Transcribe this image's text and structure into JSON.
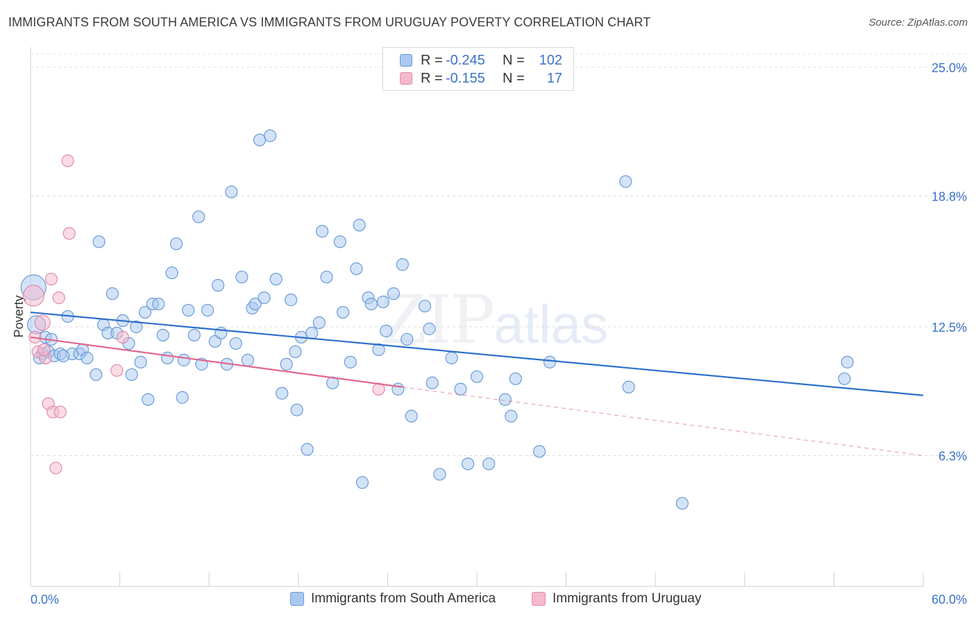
{
  "title": "IMMIGRANTS FROM SOUTH AMERICA VS IMMIGRANTS FROM URUGUAY POVERTY CORRELATION CHART",
  "source": "Source: ZipAtlas.com",
  "watermark": {
    "zip": "ZIP",
    "atlas": "atlas"
  },
  "legend_top": [
    {
      "r_label": "R =",
      "r_value": "-0.245",
      "n_label": "N =",
      "n_value": "102",
      "color": "#a8c8f0"
    },
    {
      "r_label": "R =",
      "r_value": "-0.155",
      "n_label": "N =",
      "n_value": "17",
      "color": "#f5b8cc"
    }
  ],
  "chart_data": {
    "type": "scatter",
    "ylabel": "Poverty",
    "xlim": [
      0,
      60
    ],
    "ylim": [
      0,
      25.0
    ],
    "x_tick_labels": [
      "0.0%",
      "60.0%"
    ],
    "y_ticks": [
      6.3,
      12.5,
      18.8,
      25.0
    ],
    "y_tick_labels": [
      "6.3%",
      "12.5%",
      "18.8%",
      "25.0%"
    ],
    "grid": true,
    "legend": "bottom",
    "series": [
      {
        "name": "Immigrants from South America",
        "color": "#a8c8f0",
        "stroke": "#6a9ad8",
        "trend_color": "#2c6fcb",
        "trend": {
          "x": [
            0,
            60
          ],
          "y": [
            13.2,
            9.2
          ]
        },
        "points": [
          [
            0.2,
            14.4
          ],
          [
            0.4,
            12.6
          ],
          [
            0.8,
            11.2
          ],
          [
            1.0,
            12.0
          ],
          [
            1.2,
            11.3
          ],
          [
            1.6,
            11.1
          ],
          [
            2.0,
            11.2
          ],
          [
            2.5,
            13.0
          ],
          [
            2.8,
            11.2
          ],
          [
            3.3,
            11.2
          ],
          [
            3.5,
            11.4
          ],
          [
            3.8,
            11.0
          ],
          [
            4.4,
            10.2
          ],
          [
            4.6,
            16.6
          ],
          [
            4.9,
            12.6
          ],
          [
            5.2,
            12.2
          ],
          [
            5.5,
            14.1
          ],
          [
            5.8,
            12.2
          ],
          [
            6.2,
            12.8
          ],
          [
            6.6,
            11.7
          ],
          [
            6.8,
            10.2
          ],
          [
            7.1,
            12.5
          ],
          [
            7.4,
            10.8
          ],
          [
            7.7,
            13.2
          ],
          [
            7.9,
            9.0
          ],
          [
            8.2,
            13.6
          ],
          [
            8.6,
            13.6
          ],
          [
            8.9,
            12.1
          ],
          [
            9.2,
            11.0
          ],
          [
            9.5,
            15.1
          ],
          [
            9.8,
            16.5
          ],
          [
            10.2,
            9.1
          ],
          [
            10.3,
            10.9
          ],
          [
            10.6,
            13.3
          ],
          [
            11.0,
            12.1
          ],
          [
            11.3,
            17.8
          ],
          [
            11.5,
            10.7
          ],
          [
            11.9,
            13.3
          ],
          [
            12.4,
            11.8
          ],
          [
            12.6,
            14.5
          ],
          [
            12.8,
            12.2
          ],
          [
            13.2,
            10.7
          ],
          [
            13.5,
            19.0
          ],
          [
            13.8,
            11.7
          ],
          [
            14.2,
            14.9
          ],
          [
            14.6,
            10.9
          ],
          [
            14.9,
            13.4
          ],
          [
            15.1,
            13.6
          ],
          [
            15.4,
            21.5
          ],
          [
            16.1,
            21.7
          ],
          [
            15.7,
            13.9
          ],
          [
            16.5,
            14.8
          ],
          [
            16.9,
            9.3
          ],
          [
            17.2,
            10.7
          ],
          [
            17.5,
            13.8
          ],
          [
            17.8,
            11.3
          ],
          [
            17.9,
            8.5
          ],
          [
            18.2,
            12.0
          ],
          [
            18.6,
            6.6
          ],
          [
            18.9,
            12.2
          ],
          [
            19.4,
            12.7
          ],
          [
            19.6,
            17.1
          ],
          [
            19.9,
            14.9
          ],
          [
            20.3,
            9.8
          ],
          [
            20.8,
            16.6
          ],
          [
            21.0,
            13.2
          ],
          [
            21.5,
            10.8
          ],
          [
            21.9,
            15.3
          ],
          [
            22.1,
            17.4
          ],
          [
            22.3,
            5.0
          ],
          [
            22.7,
            13.9
          ],
          [
            22.9,
            13.6
          ],
          [
            23.4,
            11.4
          ],
          [
            23.7,
            13.7
          ],
          [
            23.9,
            12.3
          ],
          [
            24.4,
            14.1
          ],
          [
            24.7,
            9.5
          ],
          [
            25.0,
            15.5
          ],
          [
            25.3,
            11.9
          ],
          [
            25.6,
            8.2
          ],
          [
            26.5,
            13.5
          ],
          [
            26.8,
            12.4
          ],
          [
            27.0,
            9.8
          ],
          [
            27.5,
            5.4
          ],
          [
            28.3,
            11.0
          ],
          [
            28.9,
            9.5
          ],
          [
            29.4,
            5.9
          ],
          [
            30.0,
            10.1
          ],
          [
            30.8,
            5.9
          ],
          [
            31.9,
            9.0
          ],
          [
            32.3,
            8.2
          ],
          [
            32.6,
            10.0
          ],
          [
            34.2,
            6.5
          ],
          [
            34.9,
            10.8
          ],
          [
            40.0,
            19.5
          ],
          [
            40.2,
            9.6
          ],
          [
            43.8,
            4.0
          ],
          [
            54.7,
            10.0
          ],
          [
            54.9,
            10.8
          ],
          [
            0.6,
            11.0
          ],
          [
            1.4,
            11.9
          ],
          [
            2.2,
            11.1
          ]
        ]
      },
      {
        "name": "Immigrants from Uruguay",
        "color": "#f5b8cc",
        "stroke": "#e08aa8",
        "trend_color": "#e0668e",
        "trend": {
          "x": [
            0,
            25
          ],
          "y": [
            12.0,
            9.6
          ]
        },
        "trend_dashed": {
          "x": [
            25,
            60
          ],
          "y": [
            9.6,
            6.3
          ]
        },
        "points": [
          [
            0.2,
            14.0
          ],
          [
            0.3,
            12.0
          ],
          [
            0.5,
            11.3
          ],
          [
            0.8,
            12.7
          ],
          [
            1.0,
            11.0
          ],
          [
            1.2,
            8.8
          ],
          [
            1.4,
            14.8
          ],
          [
            1.5,
            8.4
          ],
          [
            1.7,
            5.7
          ],
          [
            1.9,
            13.9
          ],
          [
            2.0,
            8.4
          ],
          [
            2.5,
            20.5
          ],
          [
            2.6,
            17.0
          ],
          [
            5.8,
            10.4
          ],
          [
            6.2,
            12.0
          ],
          [
            23.4,
            9.5
          ],
          [
            0.9,
            11.4
          ]
        ]
      }
    ]
  }
}
